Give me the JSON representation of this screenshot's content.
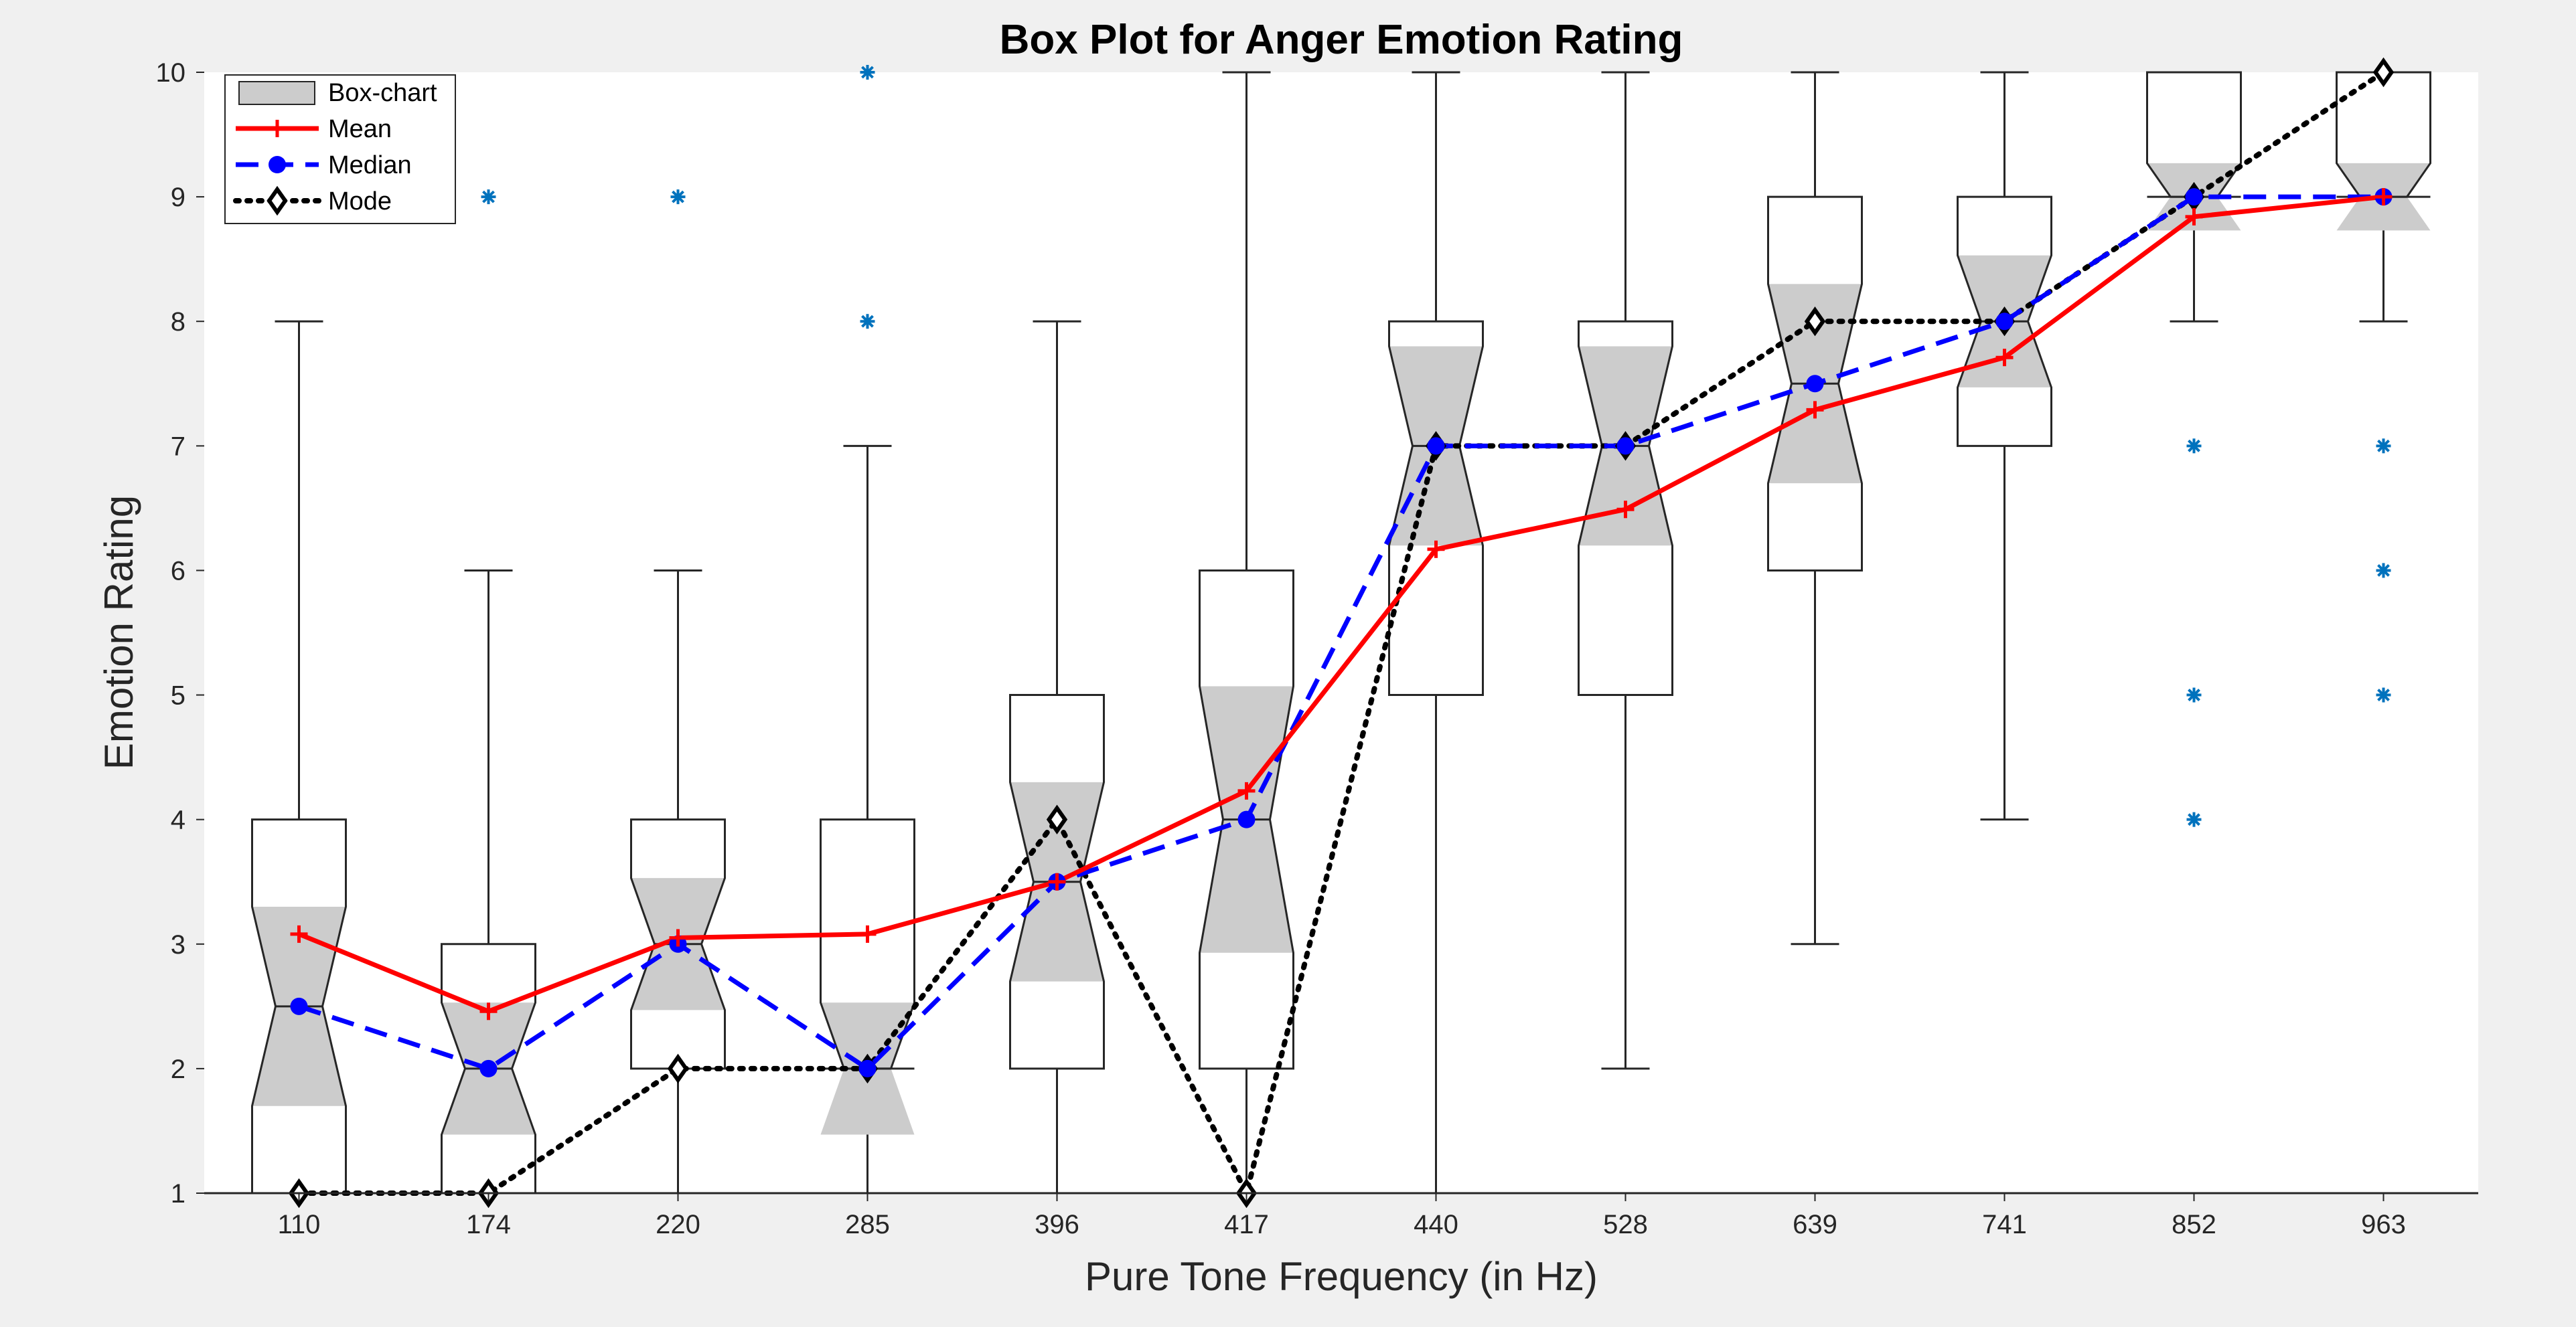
{
  "chart_data": {
    "type": "box",
    "title": "Box Plot for Anger Emotion Rating",
    "xlabel": "Pure Tone Frequency (in Hz)",
    "ylabel": "Emotion Rating",
    "ylim": [
      1,
      10
    ],
    "yticks": [
      "1",
      "2",
      "3",
      "4",
      "5",
      "6",
      "7",
      "8",
      "9",
      "10"
    ],
    "categories": [
      "110",
      "174",
      "220",
      "285",
      "396",
      "417",
      "440",
      "528",
      "639",
      "741",
      "852",
      "963"
    ],
    "boxes": [
      {
        "whisker_low": 1,
        "q1": 1,
        "median": 2.5,
        "q3": 4,
        "whisker_high": 8,
        "notch_low": 1.7,
        "notch_high": 3.3,
        "outliers": []
      },
      {
        "whisker_low": 1,
        "q1": 1,
        "median": 2,
        "q3": 3,
        "whisker_high": 6,
        "notch_low": 1.47,
        "notch_high": 2.53,
        "outliers": [
          9
        ]
      },
      {
        "whisker_low": 1,
        "q1": 2,
        "median": 3,
        "q3": 4,
        "whisker_high": 6,
        "notch_low": 2.47,
        "notch_high": 3.53,
        "outliers": [
          9
        ]
      },
      {
        "whisker_low": 1,
        "q1": 2,
        "median": 2,
        "q3": 4,
        "whisker_high": 7,
        "notch_low": 1.47,
        "notch_high": 2.53,
        "outliers": [
          8,
          10
        ]
      },
      {
        "whisker_low": 1,
        "q1": 2,
        "median": 3.5,
        "q3": 5,
        "whisker_high": 8,
        "notch_low": 2.7,
        "notch_high": 4.3,
        "outliers": []
      },
      {
        "whisker_low": 1,
        "q1": 2,
        "median": 4,
        "q3": 6,
        "whisker_high": 10,
        "notch_low": 2.93,
        "notch_high": 5.07,
        "outliers": []
      },
      {
        "whisker_low": 1,
        "q1": 5,
        "median": 7,
        "q3": 8,
        "whisker_high": 10,
        "notch_low": 6.2,
        "notch_high": 7.8,
        "outliers": []
      },
      {
        "whisker_low": 2,
        "q1": 5,
        "median": 7,
        "q3": 8,
        "whisker_high": 10,
        "notch_low": 6.2,
        "notch_high": 7.8,
        "outliers": []
      },
      {
        "whisker_low": 3,
        "q1": 6,
        "median": 7.5,
        "q3": 9,
        "whisker_high": 10,
        "notch_low": 6.7,
        "notch_high": 8.3,
        "outliers": []
      },
      {
        "whisker_low": 4,
        "q1": 7,
        "median": 8,
        "q3": 9,
        "whisker_high": 10,
        "notch_low": 7.47,
        "notch_high": 8.53,
        "outliers": []
      },
      {
        "whisker_low": 8,
        "q1": 9,
        "median": 9,
        "q3": 10,
        "whisker_high": 10,
        "notch_low": 8.73,
        "notch_high": 9.27,
        "outliers": [
          7,
          5,
          4
        ]
      },
      {
        "whisker_low": 8,
        "q1": 9,
        "median": 9,
        "q3": 10,
        "whisker_high": 10,
        "notch_low": 8.73,
        "notch_high": 9.27,
        "outliers": [
          7,
          6,
          5
        ]
      }
    ],
    "series": [
      {
        "name": "Mean",
        "color": "#ff0000",
        "values": [
          3.08,
          2.46,
          3.05,
          3.08,
          3.5,
          4.23,
          6.17,
          6.49,
          7.29,
          7.71,
          8.84,
          9.0
        ]
      },
      {
        "name": "Median",
        "color": "#0000ff",
        "values": [
          2.5,
          2,
          3,
          2,
          3.5,
          4,
          7,
          7,
          7.5,
          8,
          9,
          9
        ]
      },
      {
        "name": "Mode",
        "color": "#000000",
        "values": [
          1,
          1,
          2,
          2,
          4,
          1,
          7,
          7,
          8,
          8,
          9,
          10
        ]
      }
    ],
    "legend": {
      "position": "top-left",
      "entries": [
        "Box-chart",
        "Mean",
        "Median",
        "Mode"
      ]
    },
    "colors": {
      "notch_fill": "#cccccc",
      "outlier": "#0072bd",
      "box_edge": "#262626"
    }
  }
}
